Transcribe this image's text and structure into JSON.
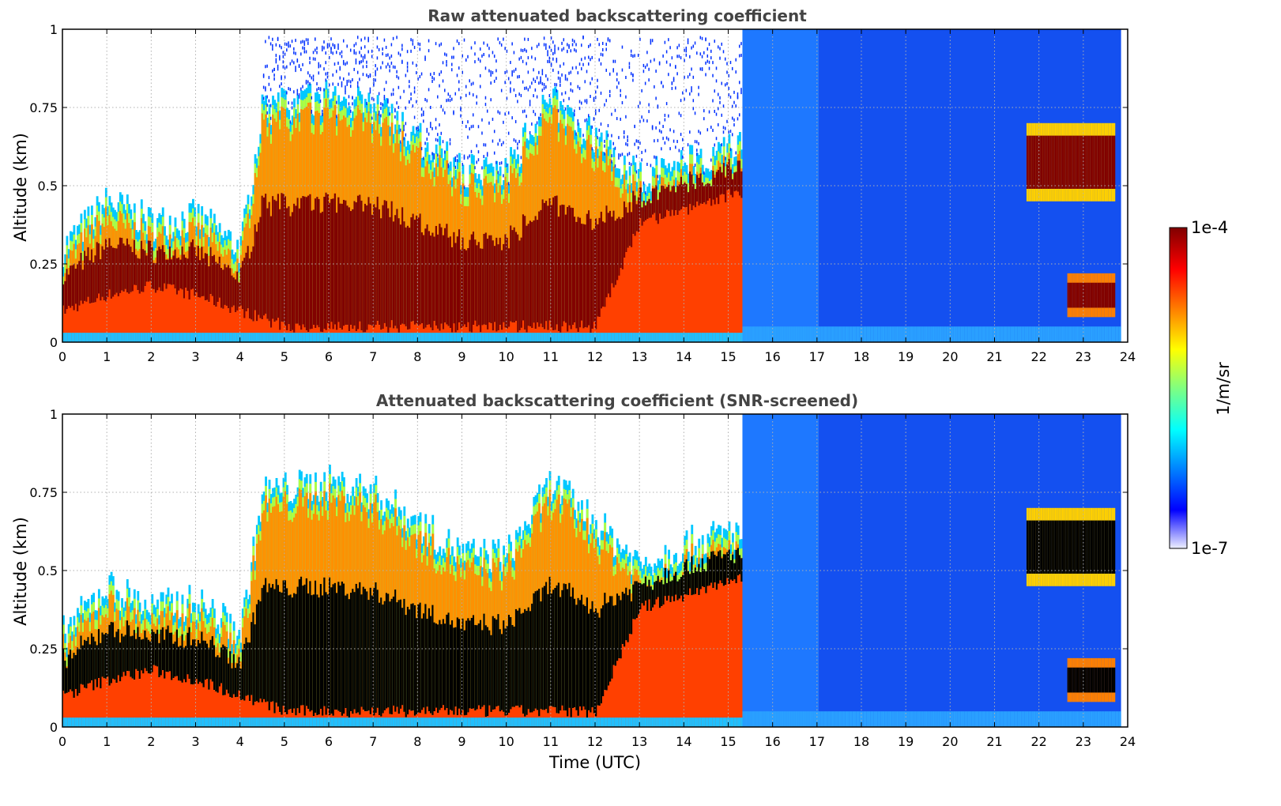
{
  "chart_data": [
    {
      "type": "heatmap",
      "title": "Raw attenuated backscattering coefficient",
      "ylabel": "Altitude (km)",
      "xlabel": "",
      "xlim": [
        0,
        24
      ],
      "ylim": [
        0,
        1
      ],
      "xticks": [
        "0",
        "1",
        "2",
        "3",
        "4",
        "5",
        "6",
        "7",
        "8",
        "9",
        "10",
        "11",
        "12",
        "13",
        "14",
        "15",
        "16",
        "17",
        "18",
        "19",
        "20",
        "21",
        "22",
        "23",
        "24"
      ],
      "yticks": [
        "0",
        "0.25",
        "0.5",
        "0.75",
        "1"
      ],
      "grid": true,
      "colorscale": "jet",
      "saturated_color": "#800000",
      "features": {
        "layer_top_km": [
          [
            0,
            0.3
          ],
          [
            1,
            0.45
          ],
          [
            2,
            0.38
          ],
          [
            3,
            0.4
          ],
          [
            4,
            0.3
          ],
          [
            4.5,
            0.75
          ],
          [
            6,
            0.78
          ],
          [
            7,
            0.75
          ],
          [
            8,
            0.65
          ],
          [
            9,
            0.55
          ],
          [
            10,
            0.55
          ],
          [
            11,
            0.78
          ],
          [
            12,
            0.65
          ],
          [
            13,
            0.52
          ],
          [
            14,
            0.58
          ],
          [
            15,
            0.62
          ]
        ],
        "layer_base_km": [
          [
            0,
            0.1
          ],
          [
            1,
            0.15
          ],
          [
            2,
            0.18
          ],
          [
            3,
            0.15
          ],
          [
            4,
            0.1
          ],
          [
            5,
            0.05
          ],
          [
            8,
            0.05
          ],
          [
            12,
            0.05
          ],
          [
            13,
            0.38
          ],
          [
            14,
            0.42
          ],
          [
            15,
            0.47
          ]
        ],
        "boundary_layer_end_utc": 15.3,
        "background_extent_km": [
          0,
          1
        ],
        "upper_layer_utc": [
          21.7,
          23.7
        ],
        "upper_layer_km": [
          0.45,
          0.7
        ],
        "lower_layer_utc": [
          22.6,
          23.7
        ],
        "lower_layer_km": [
          0.08,
          0.22
        ],
        "data_end_utc": 23.8,
        "noisy_above_layer": true
      }
    },
    {
      "type": "heatmap",
      "title": "Attenuated backscattering coefficient (SNR-screened)",
      "ylabel": "Altitude (km)",
      "xlabel": "Time (UTC)",
      "xlim": [
        0,
        24
      ],
      "ylim": [
        0,
        1
      ],
      "xticks": [
        "0",
        "1",
        "2",
        "3",
        "4",
        "5",
        "6",
        "7",
        "8",
        "9",
        "10",
        "11",
        "12",
        "13",
        "14",
        "15",
        "16",
        "17",
        "18",
        "19",
        "20",
        "21",
        "22",
        "23",
        "24"
      ],
      "yticks": [
        "0",
        "0.25",
        "0.5",
        "0.75",
        "1"
      ],
      "grid": true,
      "colorscale": "jet",
      "saturated_color": "#000000",
      "features": {
        "layer_top_km": [
          [
            0,
            0.3
          ],
          [
            1,
            0.45
          ],
          [
            2,
            0.38
          ],
          [
            3,
            0.4
          ],
          [
            4,
            0.3
          ],
          [
            4.5,
            0.75
          ],
          [
            6,
            0.78
          ],
          [
            7,
            0.75
          ],
          [
            8,
            0.65
          ],
          [
            9,
            0.55
          ],
          [
            10,
            0.55
          ],
          [
            11,
            0.78
          ],
          [
            12,
            0.65
          ],
          [
            13,
            0.52
          ],
          [
            14,
            0.58
          ],
          [
            15,
            0.62
          ]
        ],
        "layer_base_km": [
          [
            0,
            0.1
          ],
          [
            1,
            0.15
          ],
          [
            2,
            0.18
          ],
          [
            3,
            0.15
          ],
          [
            4,
            0.1
          ],
          [
            5,
            0.05
          ],
          [
            8,
            0.05
          ],
          [
            12,
            0.05
          ],
          [
            13,
            0.38
          ],
          [
            14,
            0.42
          ],
          [
            15,
            0.47
          ]
        ],
        "boundary_layer_end_utc": 15.3,
        "background_extent_km": [
          0,
          1
        ],
        "upper_layer_utc": [
          21.7,
          23.7
        ],
        "upper_layer_km": [
          0.45,
          0.7
        ],
        "lower_layer_utc": [
          22.6,
          23.7
        ],
        "lower_layer_km": [
          0.08,
          0.22
        ],
        "data_end_utc": 23.8,
        "noisy_above_layer": false
      }
    }
  ],
  "colorbar": {
    "min_label": "1e-7",
    "max_label": "1e-4",
    "unit_label": "1/m/sr",
    "scale": "log",
    "range": [
      1e-07,
      0.0001
    ]
  }
}
